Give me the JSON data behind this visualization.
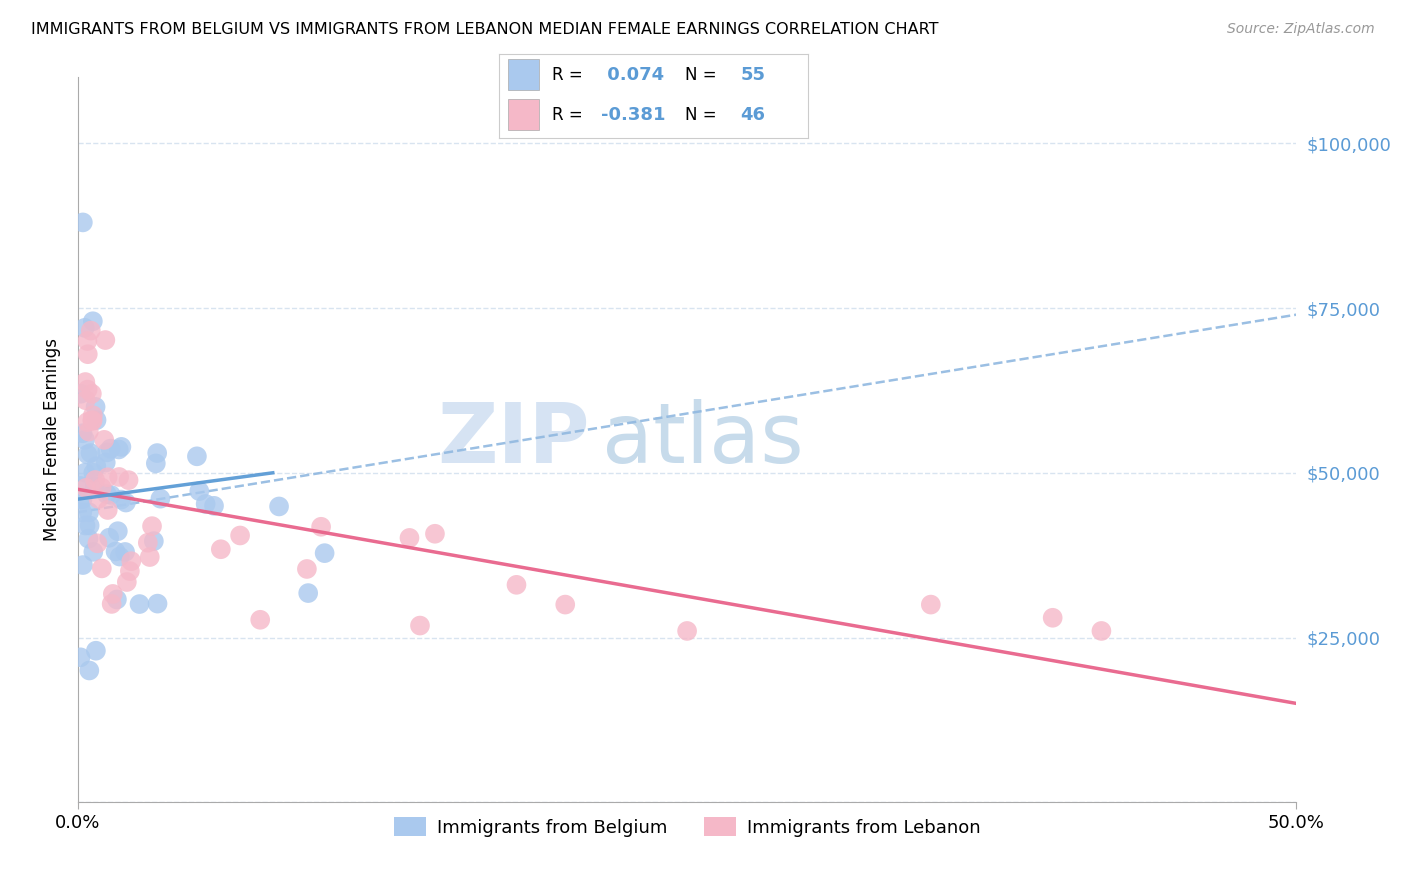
{
  "title": "IMMIGRANTS FROM BELGIUM VS IMMIGRANTS FROM LEBANON MEDIAN FEMALE EARNINGS CORRELATION CHART",
  "source": "Source: ZipAtlas.com",
  "ylabel": "Median Female Earnings",
  "xlim": [
    0.0,
    0.5
  ],
  "ylim": [
    0,
    110000
  ],
  "yticks": [
    0,
    25000,
    50000,
    75000,
    100000
  ],
  "ytick_labels": [
    "",
    "$25,000",
    "$50,000",
    "$75,000",
    "$100,000"
  ],
  "background_color": "#ffffff",
  "watermark_zip": "ZIP",
  "watermark_atlas": "atlas",
  "blue_scatter_color": "#aac9ee",
  "pink_scatter_color": "#f5b8c8",
  "blue_line_color": "#5b9bd5",
  "pink_line_color": "#e8638a",
  "dashed_line_color": "#90b8e0",
  "grid_color": "#d8e4f0",
  "legend_r1_text": "R = ",
  "legend_r1_val": " 0.074",
  "legend_n1_text": "N = ",
  "legend_n1_val": "55",
  "legend_r2_text": "R = ",
  "legend_r2_val": "-0.381",
  "legend_n2_text": "N = ",
  "legend_n2_val": "46",
  "ytick_color": "#5b9bd5",
  "bel_slope": 150000,
  "bel_intercept": 47000,
  "leb_slope": -65000,
  "leb_intercept": 47500,
  "dashed_slope": 60000,
  "dashed_intercept": 44000
}
